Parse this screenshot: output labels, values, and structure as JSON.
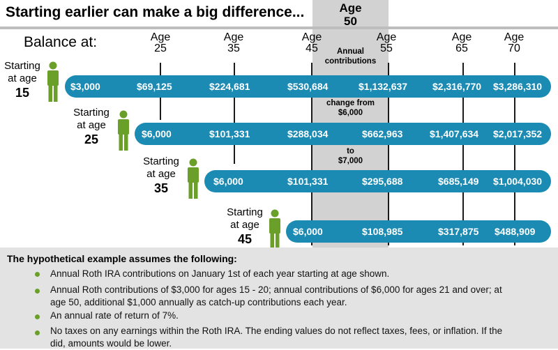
{
  "title": "Starting earlier can make a big difference...",
  "balance_label": "Balance at:",
  "highlight_column": {
    "line1": "Age",
    "line2": "50"
  },
  "column_headers": [
    {
      "line1": "Age",
      "line2": "25"
    },
    {
      "line1": "Age",
      "line2": "35"
    },
    {
      "line1": "Age",
      "line2": "45"
    },
    {
      "line1": "Age",
      "line2": "55"
    },
    {
      "line1": "Age",
      "line2": "65"
    },
    {
      "line1": "Age",
      "line2": "70"
    }
  ],
  "notes": {
    "n1": "Annual",
    "n2": "contributions",
    "n3": "change from",
    "n4": "$6,000",
    "n5": "to",
    "n6": "$7,000"
  },
  "rows": [
    {
      "starting": "Starting",
      "at": "at age",
      "age": "15",
      "values": [
        "$3,000",
        "$69,125",
        "$224,681",
        "$530,684",
        "$1,132,637",
        "$2,316,770",
        "$3,286,310"
      ]
    },
    {
      "starting": "Starting",
      "at": "at age",
      "age": "25",
      "values": [
        "$6,000",
        "$101,331",
        "$288,034",
        "$662,963",
        "$1,407,634",
        "$2,017,352"
      ]
    },
    {
      "starting": "Starting",
      "at": "at age",
      "age": "35",
      "values": [
        "$6,000",
        "$101,331",
        "$295,688",
        "$685,149",
        "$1,004,030"
      ]
    },
    {
      "starting": "Starting",
      "at": "at age",
      "age": "45",
      "values": [
        "$6,000",
        "$108,985",
        "$317,875",
        "$488,909"
      ]
    }
  ],
  "assumptions_heading": "The hypothetical example assumes the following:",
  "assumptions": [
    "Annual Roth IRA contributions on January 1st of each year starting at age shown.",
    "Annual Roth contributions of $3,000 for ages 15 - 20; annual contributions of $6,000 for ages 21 and over; at age 50, additional $1,000 annually as catch-up contributions each year.",
    "An annual rate of return of 7%.",
    "No taxes on any earnings within the Roth IRA. The ending values do not reflect taxes, fees, or inflation. If the did, amounts would be lower."
  ],
  "colors": {
    "bar": "#1b8bb4",
    "person": "#6a9f2a",
    "highlight_band": "#d2d2d2",
    "footer": "#e3e3e3"
  }
}
